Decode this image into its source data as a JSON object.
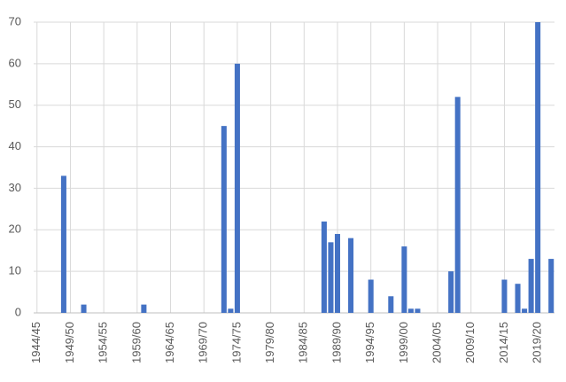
{
  "chart_data": {
    "type": "bar",
    "categories": [
      "1944/45",
      null,
      null,
      null,
      null,
      "1949/50",
      null,
      null,
      null,
      null,
      "1954/55",
      null,
      null,
      null,
      null,
      "1959/60",
      null,
      null,
      null,
      null,
      "1964/65",
      null,
      null,
      null,
      null,
      "1969/70",
      null,
      null,
      null,
      null,
      "1974/75",
      null,
      null,
      null,
      null,
      "1979/80",
      null,
      null,
      null,
      null,
      "1984/85",
      null,
      null,
      null,
      null,
      "1989/90",
      null,
      null,
      null,
      null,
      "1994/95",
      null,
      null,
      null,
      null,
      "1999/00",
      null,
      null,
      null,
      null,
      "2004/05",
      null,
      null,
      null,
      null,
      "2009/10",
      null,
      null,
      null,
      null,
      "2014/15",
      null,
      null,
      null,
      null,
      "2019/20",
      null,
      null
    ],
    "values": [
      0,
      0,
      0,
      0,
      33,
      0,
      0,
      2,
      0,
      0,
      0,
      0,
      0,
      0,
      0,
      0,
      2,
      0,
      0,
      0,
      0,
      0,
      0,
      0,
      0,
      0,
      0,
      0,
      45,
      1,
      60,
      0,
      0,
      0,
      0,
      0,
      0,
      0,
      0,
      0,
      0,
      0,
      0,
      22,
      17,
      19,
      0,
      18,
      0,
      0,
      8,
      0,
      0,
      4,
      0,
      16,
      1,
      1,
      0,
      0,
      0,
      0,
      10,
      52,
      0,
      0,
      0,
      0,
      0,
      0,
      8,
      0,
      7,
      1,
      13,
      70,
      0,
      13
    ],
    "color": "#4472c4",
    "ylim": [
      0,
      70
    ],
    "yticks": [
      0,
      10,
      20,
      30,
      40,
      50,
      60,
      70
    ],
    "grid": true
  }
}
